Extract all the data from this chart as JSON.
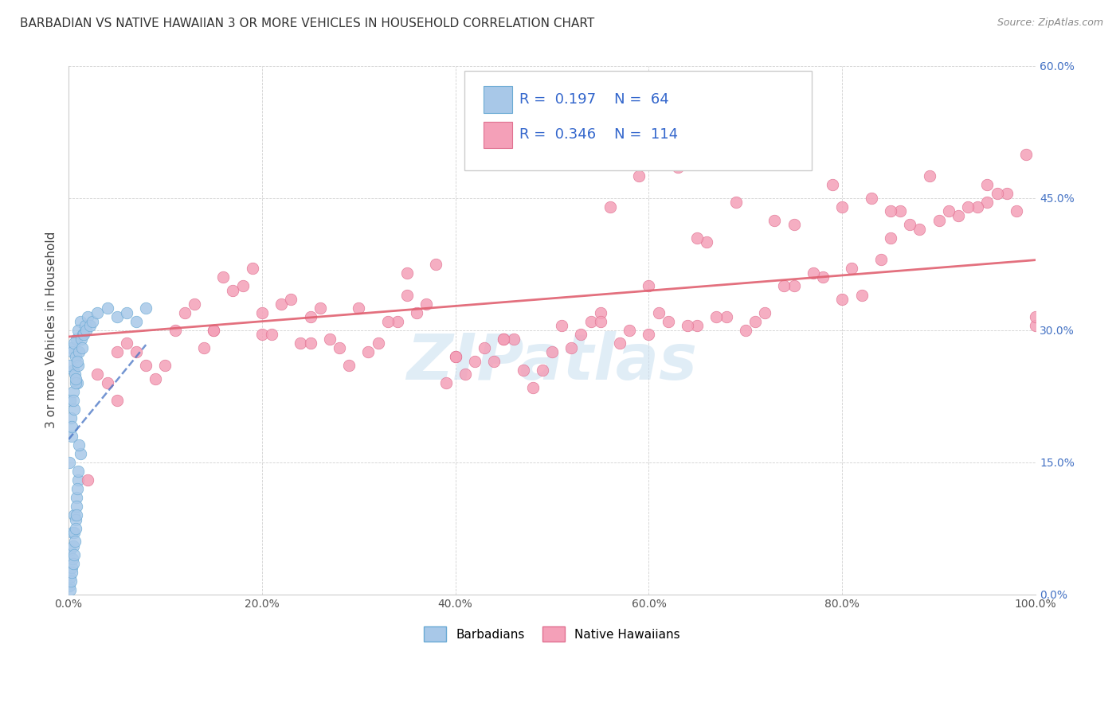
{
  "title": "BARBADIAN VS NATIVE HAWAIIAN 3 OR MORE VEHICLES IN HOUSEHOLD CORRELATION CHART",
  "source": "Source: ZipAtlas.com",
  "ylabel_label": "3 or more Vehicles in Household",
  "barbadian_R": "0.197",
  "barbadian_N": "64",
  "native_hawaiian_R": "0.346",
  "native_hawaiian_N": "114",
  "barbadian_color": "#a8c8e8",
  "barbadian_edge_color": "#6aaad4",
  "native_hawaiian_color": "#f4a0b8",
  "native_hawaiian_edge_color": "#e07090",
  "barbadian_line_color": "#4472c4",
  "native_hawaiian_line_color": "#e06070",
  "watermark": "ZIPatlas",
  "watermark_color": "#c8dff0",
  "title_color": "#333333",
  "source_color": "#888888",
  "tick_color_y": "#4472c4",
  "tick_color_x": "#555555",
  "grid_color": "#cccccc",
  "legend_border_color": "#cccccc",
  "barbadian_seed_x": [
    0.3,
    0.5,
    0.2,
    0.8,
    1.2,
    0.4,
    0.6,
    1.0,
    0.15,
    0.7,
    0.9,
    1.5,
    0.25,
    0.45,
    0.65,
    0.1,
    0.35,
    0.55,
    0.75,
    0.95,
    1.1,
    1.3,
    1.7,
    2.0,
    0.2,
    0.4,
    0.6,
    0.8,
    1.0,
    1.2,
    0.3,
    0.5,
    0.7,
    0.9,
    1.4,
    1.6,
    1.8,
    2.2,
    2.5,
    3.0,
    0.1,
    0.2,
    0.3,
    0.4,
    0.5,
    0.6,
    0.7,
    0.8,
    0.9,
    1.0,
    4.0,
    5.0,
    6.0,
    7.0,
    8.0,
    0.15,
    0.25,
    0.35,
    0.45,
    0.55,
    0.65,
    0.75,
    0.85,
    1.05
  ],
  "barbadian_seed_y": [
    28.0,
    25.5,
    26.0,
    29.0,
    31.0,
    27.5,
    28.5,
    30.0,
    22.0,
    27.0,
    24.0,
    29.5,
    20.0,
    23.0,
    25.0,
    15.0,
    18.0,
    21.0,
    24.0,
    26.0,
    27.5,
    29.0,
    30.5,
    31.5,
    5.0,
    7.0,
    9.0,
    11.0,
    13.0,
    16.0,
    19.0,
    22.0,
    24.5,
    26.5,
    28.0,
    29.5,
    30.0,
    30.5,
    31.0,
    32.0,
    1.0,
    2.0,
    3.0,
    4.0,
    5.5,
    7.0,
    8.5,
    10.0,
    12.0,
    14.0,
    32.5,
    31.5,
    32.0,
    31.0,
    32.5,
    0.5,
    1.5,
    2.5,
    3.5,
    4.5,
    6.0,
    7.5,
    9.0,
    17.0
  ],
  "nh_seed_x": [
    3.0,
    5.0,
    7.0,
    10.0,
    12.0,
    15.0,
    18.0,
    20.0,
    22.0,
    25.0,
    28.0,
    30.0,
    32.0,
    35.0,
    38.0,
    40.0,
    42.0,
    45.0,
    48.0,
    50.0,
    52.0,
    55.0,
    58.0,
    60.0,
    62.0,
    65.0,
    68.0,
    70.0,
    72.0,
    75.0,
    78.0,
    80.0,
    82.0,
    85.0,
    88.0,
    90.0,
    92.0,
    95.0,
    98.0,
    100.0,
    6.0,
    9.0,
    13.0,
    17.0,
    21.0,
    24.0,
    27.0,
    31.0,
    34.0,
    37.0,
    41.0,
    44.0,
    47.0,
    51.0,
    54.0,
    57.0,
    61.0,
    64.0,
    67.0,
    71.0,
    74.0,
    77.0,
    81.0,
    84.0,
    87.0,
    91.0,
    94.0,
    97.0,
    4.0,
    8.0,
    11.0,
    14.0,
    16.0,
    19.0,
    23.0,
    26.0,
    29.0,
    33.0,
    36.0,
    39.0,
    43.0,
    46.0,
    49.0,
    53.0,
    56.0,
    59.0,
    63.0,
    66.0,
    69.0,
    73.0,
    76.0,
    79.0,
    83.0,
    86.0,
    89.0,
    93.0,
    96.0,
    99.0,
    2.0,
    20.0,
    40.0,
    60.0,
    80.0,
    100.0,
    15.0,
    35.0,
    55.0,
    75.0,
    95.0,
    45.0,
    25.0,
    65.0,
    85.0,
    5.0
  ],
  "nh_seed_y": [
    25.0,
    22.0,
    27.5,
    26.0,
    32.0,
    30.0,
    35.0,
    29.5,
    33.0,
    31.5,
    28.0,
    32.5,
    28.5,
    36.5,
    37.5,
    27.0,
    26.5,
    29.0,
    23.5,
    27.5,
    28.0,
    32.0,
    30.0,
    29.5,
    31.0,
    30.5,
    31.5,
    30.0,
    32.0,
    35.0,
    36.0,
    33.5,
    34.0,
    40.5,
    41.5,
    42.5,
    43.0,
    44.5,
    43.5,
    30.5,
    28.5,
    24.5,
    33.0,
    34.5,
    29.5,
    28.5,
    29.0,
    27.5,
    31.0,
    33.0,
    25.0,
    26.5,
    25.5,
    30.5,
    31.0,
    28.5,
    32.0,
    30.5,
    31.5,
    31.0,
    35.0,
    36.5,
    37.0,
    38.0,
    42.0,
    43.5,
    44.0,
    45.5,
    24.0,
    26.0,
    30.0,
    28.0,
    36.0,
    37.0,
    33.5,
    32.5,
    26.0,
    31.0,
    32.0,
    24.0,
    28.0,
    29.0,
    25.5,
    29.5,
    44.0,
    47.5,
    48.5,
    40.0,
    44.5,
    42.5,
    49.5,
    46.5,
    45.0,
    43.5,
    47.5,
    44.0,
    45.5,
    50.0,
    13.0,
    32.0,
    27.0,
    35.0,
    44.0,
    31.5,
    30.0,
    34.0,
    31.0,
    42.0,
    46.5,
    29.0,
    28.5,
    40.5,
    43.5,
    27.5
  ],
  "xlim": [
    0,
    100
  ],
  "ylim": [
    0,
    60
  ],
  "xticks": [
    0,
    20,
    40,
    60,
    80,
    100
  ],
  "yticks": [
    0,
    15,
    30,
    45,
    60
  ]
}
